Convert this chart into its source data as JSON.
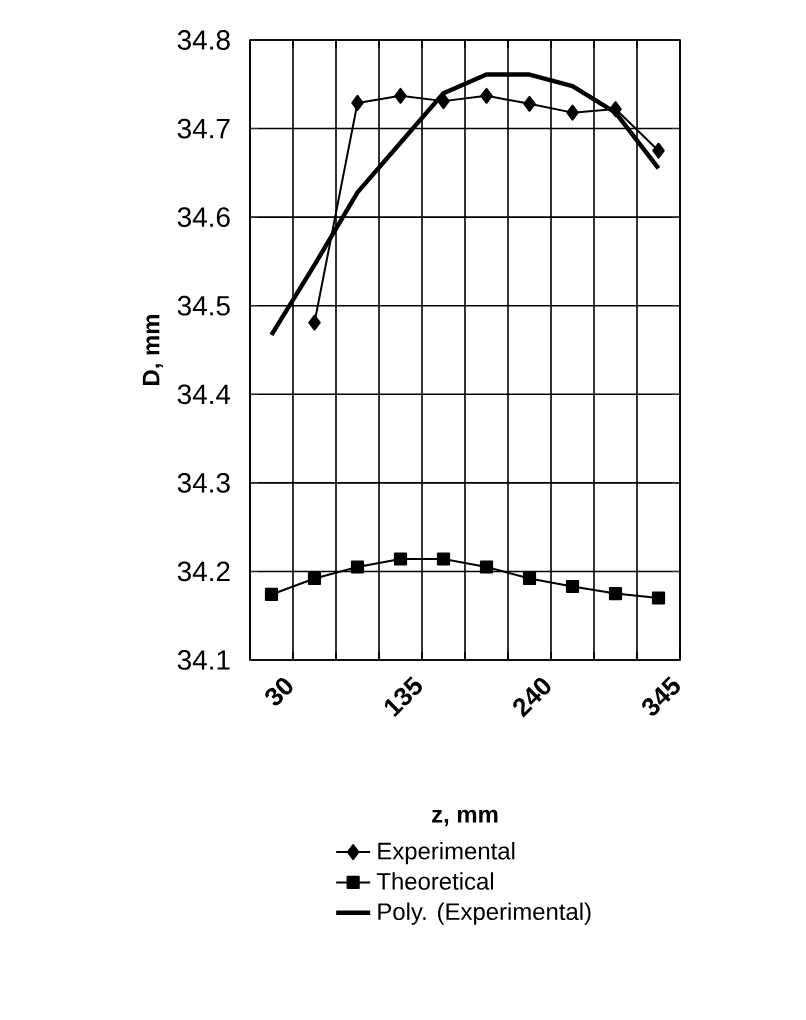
{
  "chart_data": {
    "type": "line",
    "xlabel": "z, mm",
    "ylabel": "D, mm",
    "categories": [
      "30",
      null,
      null,
      "135",
      null,
      null,
      "240",
      null,
      null,
      "345"
    ],
    "series": [
      {
        "name": "Experimental",
        "color": "#000000",
        "marker": "diamond",
        "values": [
          null,
          34.481,
          34.729,
          34.737,
          34.731,
          34.737,
          34.728,
          34.718,
          34.722,
          34.675
        ]
      },
      {
        "name": "Theoretical",
        "color": "#000000",
        "marker": "square",
        "values": [
          34.174,
          34.192,
          34.205,
          34.214,
          34.214,
          34.205,
          34.192,
          34.183,
          34.175,
          34.17
        ]
      },
      {
        "name": "Poly. (Experimental)",
        "color": "#000000",
        "marker": "none",
        "values": [
          34.467,
          34.546,
          34.628,
          34.684,
          34.74,
          34.761,
          34.761,
          34.748,
          34.718,
          34.655
        ]
      }
    ],
    "ylim": [
      34.1,
      34.8
    ],
    "yticks": [
      34.1,
      34.2,
      34.3,
      34.4,
      34.5,
      34.6,
      34.7,
      34.8
    ],
    "grid": true,
    "legend": "bottom"
  }
}
